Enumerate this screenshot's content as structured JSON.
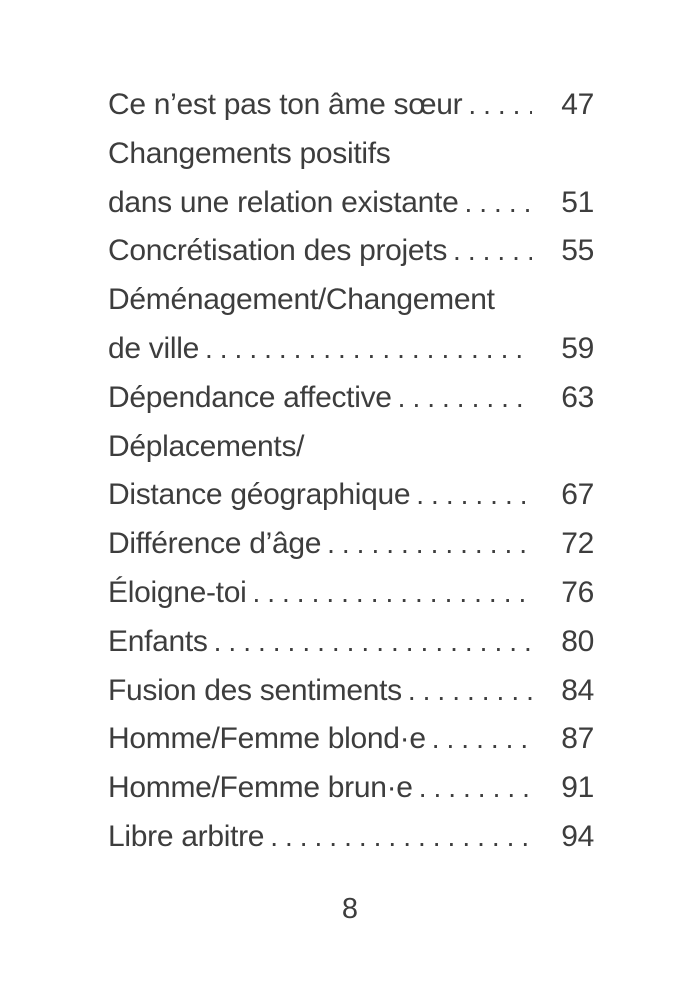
{
  "page": {
    "background_color": "#ffffff",
    "text_color": "#3d3d3d",
    "footer_page_number": "8"
  },
  "toc": {
    "entries": [
      {
        "lines": [
          "Ce n’est pas ton âme sœur"
        ],
        "page": "47"
      },
      {
        "lines": [
          "Changements positifs",
          "dans une relation existante"
        ],
        "page": "51"
      },
      {
        "lines": [
          "Concrétisation des projets"
        ],
        "page": "55"
      },
      {
        "lines": [
          "Déménagement/Changement",
          "de ville"
        ],
        "page": "59"
      },
      {
        "lines": [
          "Dépendance affective"
        ],
        "page": "63"
      },
      {
        "lines": [
          "Déplacements/",
          "Distance géographique"
        ],
        "page": "67"
      },
      {
        "lines": [
          "Différence d’âge"
        ],
        "page": "72"
      },
      {
        "lines": [
          "Éloigne-toi"
        ],
        "page": "76"
      },
      {
        "lines": [
          "Enfants"
        ],
        "page": "80"
      },
      {
        "lines": [
          "Fusion des sentiments"
        ],
        "page": "84"
      },
      {
        "lines": [
          "Homme/Femme blond·e"
        ],
        "page": "87"
      },
      {
        "lines": [
          "Homme/Femme brun·e"
        ],
        "page": "91"
      },
      {
        "lines": [
          "Libre arbitre"
        ],
        "page": "94"
      }
    ]
  }
}
